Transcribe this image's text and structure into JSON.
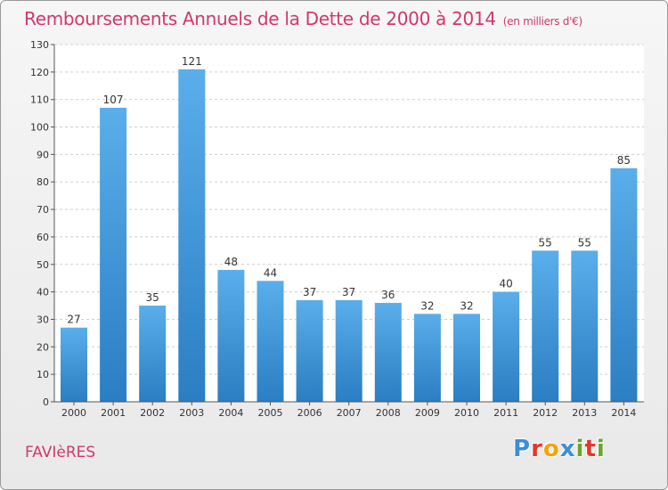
{
  "header": {
    "title": "Remboursements Annuels de la Dette de 2000 à 2014",
    "subtitle": "(en milliers d'€)"
  },
  "footer": {
    "commune": "FAVIèRES",
    "logo_letters": [
      "P",
      "r",
      "o",
      "x",
      "i",
      "t",
      "i"
    ],
    "logo_colors": [
      "#3a8fd6",
      "#e0392b",
      "#f2a30f",
      "#3a8fd6",
      "#6aa52e",
      "#e0392b",
      "#6aa52e"
    ]
  },
  "colors": {
    "bar_light": "#5aaeea",
    "bar_dark": "#2a7ec2",
    "title": "#d1386a",
    "grid": "#cfcfcf"
  },
  "chart_data": {
    "type": "bar",
    "title": "Remboursements Annuels de la Dette de 2000 à 2014",
    "categories": [
      "2000",
      "2001",
      "2002",
      "2003",
      "2004",
      "2005",
      "2006",
      "2007",
      "2008",
      "2009",
      "2010",
      "2011",
      "2012",
      "2013",
      "2014"
    ],
    "values": [
      27,
      107,
      35,
      121,
      48,
      44,
      37,
      37,
      36,
      32,
      32,
      40,
      55,
      55,
      85
    ],
    "ylim": [
      0,
      130
    ],
    "yticks": [
      0,
      10,
      20,
      30,
      40,
      50,
      60,
      70,
      80,
      90,
      100,
      110,
      120,
      130
    ],
    "grid": true,
    "xlabel": "",
    "ylabel": ""
  }
}
